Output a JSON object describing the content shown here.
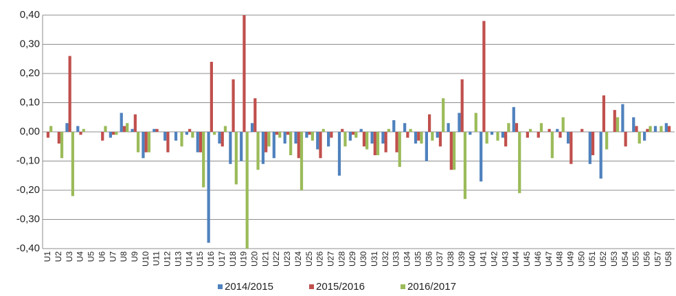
{
  "chart_data": {
    "type": "bar",
    "categories": [
      "U1",
      "U2",
      "U3",
      "U4",
      "U5",
      "U6",
      "U7",
      "U8",
      "U9",
      "U10",
      "U11",
      "U12",
      "U13",
      "U14",
      "U15",
      "U16",
      "U17",
      "U18",
      "U19",
      "U20",
      "U21",
      "U22",
      "U23",
      "U24",
      "U25",
      "U26",
      "U27",
      "U28",
      "U29",
      "U30",
      "U31",
      "U32",
      "U33",
      "U34",
      "U35",
      "U36",
      "U37",
      "U38",
      "U39",
      "U40",
      "U41",
      "U42",
      "U43",
      "U44",
      "U45",
      "U46",
      "U47",
      "U48",
      "U49",
      "U50",
      "U51",
      "U52",
      "U53",
      "U54",
      "U55",
      "U56",
      "U57",
      "U58"
    ],
    "series": [
      {
        "name": "2014/2015",
        "color": "#4f81bd",
        "values": [
          0,
          0,
          0.03,
          0.02,
          0,
          0,
          -0.02,
          0.065,
          0.01,
          -0.09,
          0.01,
          -0.03,
          -0.03,
          -0.01,
          -0.07,
          -0.38,
          -0.04,
          -0.11,
          -0.1,
          0.03,
          -0.11,
          -0.09,
          -0.04,
          -0.04,
          -0.02,
          -0.06,
          -0.05,
          -0.15,
          -0.03,
          0.01,
          -0.04,
          -0.04,
          0.04,
          0.03,
          -0.04,
          -0.1,
          -0.02,
          0.03,
          0.065,
          -0.01,
          -0.17,
          -0.01,
          -0.02,
          0.085,
          0,
          0,
          0,
          0.01,
          -0.04,
          0,
          -0.11,
          -0.16,
          0,
          0.095,
          0.05,
          -0.03,
          0.02,
          0.03
        ]
      },
      {
        "name": "2015/2016",
        "color": "#c0504d",
        "values": [
          -0.02,
          -0.04,
          0.26,
          -0.01,
          0,
          -0.03,
          -0.01,
          0.02,
          0.06,
          -0.07,
          0.01,
          -0.07,
          0,
          0.01,
          -0.07,
          0.24,
          -0.05,
          0.18,
          0.4,
          0.115,
          -0.07,
          -0.01,
          -0.01,
          -0.09,
          -0.01,
          -0.09,
          -0.02,
          0.01,
          -0.01,
          -0.05,
          -0.08,
          -0.07,
          -0.07,
          -0.02,
          -0.03,
          0.06,
          -0.05,
          -0.13,
          0.18,
          0,
          0.38,
          0,
          -0.05,
          0.03,
          -0.02,
          -0.02,
          0.01,
          -0.02,
          -0.11,
          0.01,
          -0.08,
          0.125,
          0.075,
          -0.05,
          0.02,
          0.01,
          0,
          0.02
        ]
      },
      {
        "name": "2016/2017",
        "color": "#9bbb59",
        "values": [
          0.02,
          -0.09,
          -0.22,
          0.01,
          0,
          0.02,
          -0.01,
          0.03,
          -0.07,
          -0.07,
          0,
          0,
          -0.05,
          -0.02,
          -0.19,
          -0.01,
          0.02,
          -0.18,
          -0.4,
          -0.13,
          -0.05,
          -0.02,
          -0.08,
          -0.2,
          -0.03,
          0.01,
          0,
          -0.05,
          -0.02,
          -0.06,
          -0.08,
          0.01,
          -0.12,
          0.01,
          -0.04,
          -0.03,
          0.115,
          -0.13,
          -0.23,
          0.065,
          -0.04,
          -0.03,
          0.03,
          -0.21,
          0.01,
          0.03,
          -0.09,
          0.05,
          0,
          0,
          0,
          -0.06,
          0.05,
          0,
          -0.04,
          0.02,
          0.02,
          0
        ]
      }
    ],
    "ylim": [
      -0.4,
      0.4
    ],
    "yticks": [
      {
        "value": -0.4,
        "label": "-0,40"
      },
      {
        "value": -0.3,
        "label": "-0,30"
      },
      {
        "value": -0.2,
        "label": "-0,20"
      },
      {
        "value": -0.1,
        "label": "-0,10"
      },
      {
        "value": 0,
        "label": "0,00"
      },
      {
        "value": 0.1,
        "label": "0,10"
      },
      {
        "value": 0.2,
        "label": "0,20"
      },
      {
        "value": 0.3,
        "label": "0,30"
      },
      {
        "value": 0.4,
        "label": "0,40"
      }
    ],
    "grid": true
  }
}
